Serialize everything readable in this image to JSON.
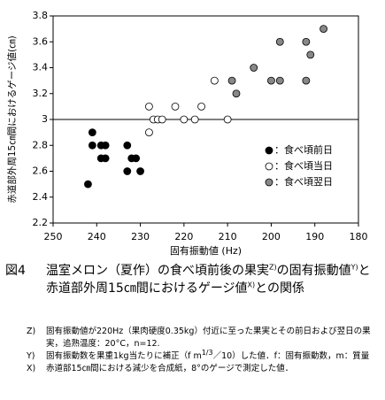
{
  "chart_data": {
    "type": "scatter",
    "xlabel": "固有振動値 (Hz)",
    "ylabel": "赤道部外周15㎝間におけるゲージ値(㎝)",
    "xlim": [
      250,
      180
    ],
    "xticks": [
      250,
      240,
      230,
      220,
      210,
      200,
      190,
      180
    ],
    "ylim": [
      2.2,
      3.8
    ],
    "yticks": [
      2.2,
      2.4,
      2.6,
      2.8,
      3.0,
      3.2,
      3.4,
      3.6,
      3.8
    ],
    "hline": 3.0,
    "series": [
      {
        "name": "：食べ頃前日",
        "color": "#000000",
        "x": [
          242,
          241,
          241,
          239,
          238,
          239,
          238,
          233,
          233,
          232,
          231,
          230
        ],
        "values": [
          2.5,
          2.9,
          2.8,
          2.8,
          2.8,
          2.7,
          2.7,
          2.8,
          2.6,
          2.7,
          2.7,
          2.6
        ]
      },
      {
        "name": "：食べ頃当日",
        "color": "#ffffff",
        "x": [
          228,
          228,
          227,
          226,
          225,
          222,
          220,
          217.5,
          216,
          213,
          210
        ],
        "values": [
          2.9,
          3.1,
          3.0,
          3.0,
          3.0,
          3.1,
          3.0,
          3.0,
          3.1,
          3.3,
          3.0
        ]
      },
      {
        "name": "：食べ頃翌日",
        "color": "#888888",
        "x": [
          209,
          208,
          204,
          200,
          198,
          198,
          192,
          192,
          191,
          188
        ],
        "values": [
          3.3,
          3.2,
          3.4,
          3.3,
          3.3,
          3.6,
          3.6,
          3.3,
          3.5,
          3.7
        ]
      }
    ]
  },
  "figure_label": "図4",
  "caption": [
    "温室メロン（夏作）の食べ頃前後の果実",
    "Z)",
    "の固有振動値",
    "Y)",
    "と赤道部外周15㎝間におけるゲージ値",
    "X)",
    "との関係"
  ],
  "notes": [
    {
      "marker": "Z)",
      "text": [
        "固有振動値が220Hz（果肉硬度0.35kg）付近に至った果実とその前日および翌日の果実，追熟温度：20°C，n=12."
      ]
    },
    {
      "marker": "Y)",
      "text": [
        "固有振動数を果重1kg当たりに補正（f m",
        "1/3",
        "／10）した値．f：固有振動数，m：質量"
      ]
    },
    {
      "marker": "X)",
      "text": [
        "赤道部15㎝間における減少を合成紙，8°のゲージで測定した値．"
      ]
    }
  ]
}
